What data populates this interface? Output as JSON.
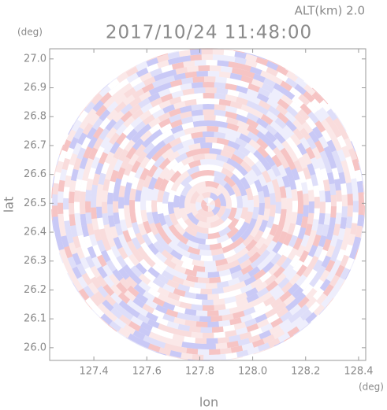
{
  "chart_data": {
    "type": "ppi",
    "title": "2017/10/24 11:48:00",
    "subtitle": "ALT(km) 2.0",
    "xlabel": "lon",
    "ylabel": "lat",
    "x_unit": "(deg)",
    "y_unit": "(deg)",
    "xlim": [
      127.233,
      128.427
    ],
    "ylim": [
      25.956,
      27.035
    ],
    "xticks": [
      127.4,
      127.6,
      127.8,
      {
        "value": 128,
        "label": "128.0"
      },
      128.2,
      128.4
    ],
    "yticks": [
      {
        "value": 26,
        "label": "26.0"
      },
      26.1,
      26.2,
      26.3,
      26.4,
      26.5,
      26.6,
      26.7,
      26.8,
      26.9,
      {
        "value": 27,
        "label": "27.0"
      }
    ]
  }
}
